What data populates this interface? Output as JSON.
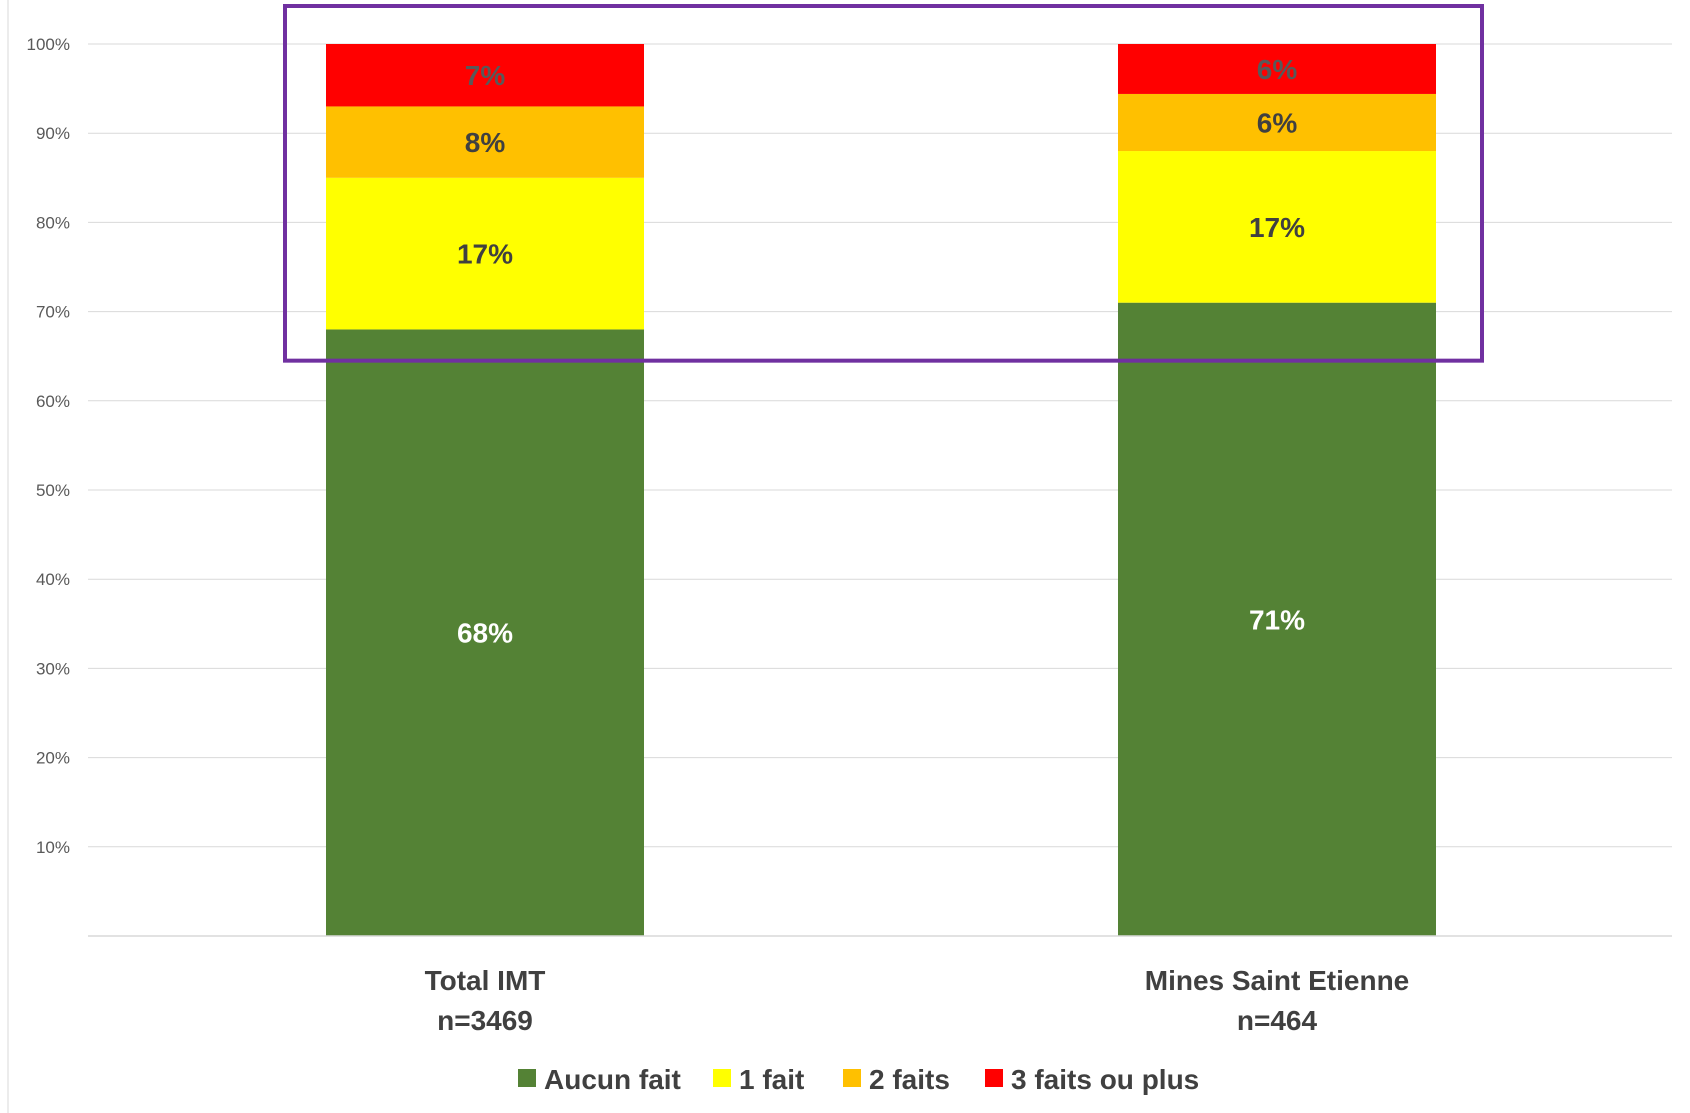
{
  "chart_data": {
    "type": "bar",
    "stacked": true,
    "title": "",
    "xlabel": "",
    "ylabel": "",
    "ylim": [
      0,
      100
    ],
    "yticks": [
      10,
      20,
      30,
      40,
      50,
      60,
      70,
      80,
      90,
      100
    ],
    "ytick_format": "%",
    "grid": true,
    "legend_position": "bottom",
    "categories": [
      {
        "line1": "Total IMT",
        "line2": "n=3469"
      },
      {
        "line1": "Mines Saint Etienne",
        "line2": "n=464"
      }
    ],
    "series": [
      {
        "name": "Aucun fait",
        "color": "#548235",
        "label_color": "#ffffff",
        "values": [
          68,
          71
        ],
        "labels": [
          "68%",
          "71%"
        ]
      },
      {
        "name": "1 fait",
        "color": "#ffff00",
        "label_color": "#404040",
        "values": [
          17,
          17
        ],
        "labels": [
          "17%",
          "17%"
        ]
      },
      {
        "name": "2 faits",
        "color": "#ffc000",
        "label_color": "#404040",
        "values": [
          8,
          6.4
        ],
        "labels": [
          "8%",
          "6%"
        ]
      },
      {
        "name": "3 faits ou plus",
        "color": "#ff0000",
        "label_color": "#595959",
        "values": [
          7,
          5.6
        ],
        "labels": [
          "7%",
          "6%"
        ]
      }
    ],
    "highlight": {
      "color": "#7030a0",
      "y_from": 64.5,
      "y_to": 100
    }
  }
}
